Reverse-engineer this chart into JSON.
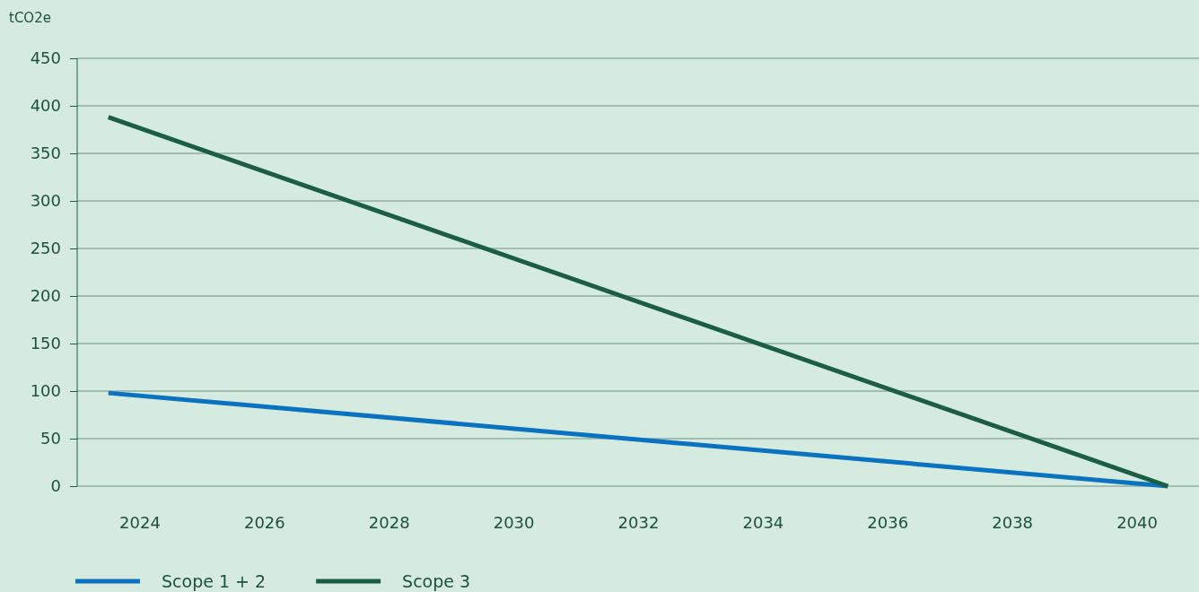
{
  "chart_data": {
    "type": "line",
    "ylabel": "tCO2e",
    "xlim": [
      2023,
      2041
    ],
    "xticks": [
      2024,
      2026,
      2028,
      2030,
      2032,
      2034,
      2036,
      2038,
      2040
    ],
    "ylim": [
      0,
      450
    ],
    "yticks": [
      0,
      50,
      100,
      150,
      200,
      250,
      300,
      350,
      400,
      450
    ],
    "x": [
      2023.5,
      2040.5
    ],
    "grid": "y",
    "legend": "bottom left",
    "marker": "none",
    "line_style": "solid",
    "series": [
      {
        "name": "Scope 1 + 2",
        "color": "#0a72bf",
        "values": [
          98,
          0
        ]
      },
      {
        "name": "Scope 3",
        "color": "#1b5e45",
        "values": [
          388,
          0
        ]
      }
    ]
  }
}
